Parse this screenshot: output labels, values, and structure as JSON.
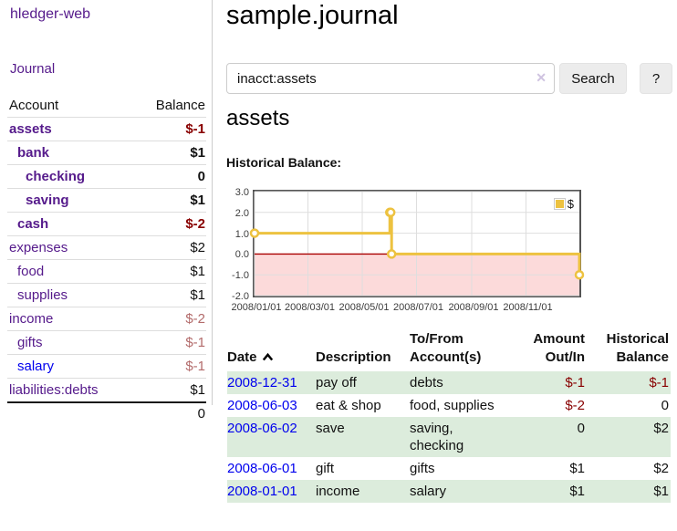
{
  "app": {
    "title": "hledger-web"
  },
  "colors": {
    "link_visited_purple": "#551a8b",
    "link_blue": "#0000ee",
    "negative_red": "#880000",
    "negative_dim_red": "#b36b6b",
    "series_gold": "#edc240",
    "row_green": "#dcecdc",
    "chart_negative_bg": "#fcdada",
    "zero_line_red": "#aa0000",
    "chart_border": "#545454"
  },
  "sidebar": {
    "journal_link": "Journal",
    "accounts_table": {
      "headers": {
        "account": "Account",
        "balance": "Balance"
      },
      "rows": [
        {
          "name": "assets",
          "level": 1,
          "matched": true,
          "balance": "$-1",
          "balance_style": "neg"
        },
        {
          "name": "bank",
          "level": 2,
          "matched": true,
          "balance": "$1",
          "balance_style": "plain"
        },
        {
          "name": "checking",
          "level": 3,
          "matched": true,
          "balance": "0",
          "balance_style": "plain"
        },
        {
          "name": "saving",
          "level": 3,
          "matched": true,
          "balance": "$1",
          "balance_style": "plain"
        },
        {
          "name": "cash",
          "level": 2,
          "matched": true,
          "balance": "$-2",
          "balance_style": "neg"
        },
        {
          "name": "expenses",
          "level": 1,
          "matched": false,
          "balance": "$2",
          "balance_style": "plain"
        },
        {
          "name": "food",
          "level": 2,
          "matched": false,
          "balance": "$1",
          "balance_style": "plain"
        },
        {
          "name": "supplies",
          "level": 2,
          "matched": false,
          "balance": "$1",
          "balance_style": "plain"
        },
        {
          "name": "income",
          "level": 1,
          "matched": false,
          "balance": "$-2",
          "balance_style": "neg-dim"
        },
        {
          "name": "gifts",
          "level": 2,
          "matched": false,
          "balance": "$-1",
          "balance_style": "neg-dim"
        },
        {
          "name": "salary",
          "level": 2,
          "matched": false,
          "balance": "$-1",
          "balance_style": "neg-dim",
          "link_style": "blue"
        },
        {
          "name": "liabilities:debts",
          "level": 1,
          "matched": false,
          "balance": "$1",
          "balance_style": "plain"
        }
      ],
      "total": "0"
    }
  },
  "main": {
    "title": "sample.journal",
    "search": {
      "value": "inacct:assets",
      "clear_icon": "✕",
      "search_label": "Search",
      "help_label": "?"
    },
    "account_heading": "assets",
    "chart_label": "Historical Balance:"
  },
  "chart_data": {
    "type": "line",
    "subtype": "step",
    "title": "Historical Balance:",
    "legend": "$",
    "legend_position": "top-right",
    "grid": true,
    "negative_region_shaded": true,
    "xlim": [
      "2008-01-01",
      "2008-12-31"
    ],
    "ylim": [
      -2,
      3
    ],
    "x_ticks": [
      "2008/01/01",
      "2008/03/01",
      "2008/05/01",
      "2008/07/01",
      "2008/09/01",
      "2008/11/01"
    ],
    "y_ticks": [
      "3.0",
      "2.0",
      "1.0",
      "0.0",
      "-1.0",
      "-2.0"
    ],
    "series": [
      {
        "name": "$",
        "color": "#edc240",
        "points": [
          [
            "2008-01-01",
            1
          ],
          [
            "2008-06-01",
            2
          ],
          [
            "2008-06-02",
            2
          ],
          [
            "2008-06-03",
            0
          ],
          [
            "2008-12-31",
            -1
          ]
        ]
      }
    ]
  },
  "register_table": {
    "headers": {
      "date": "Date",
      "description": "Description",
      "accounts": "To/From Account(s)",
      "amount": "Amount Out/In",
      "balance": "Historical Balance"
    },
    "rows": [
      {
        "date": "2008-12-31",
        "description": "pay off",
        "accounts": "debts",
        "amount": "$-1",
        "amount_style": "neg",
        "balance": "$-1",
        "balance_style": "neg"
      },
      {
        "date": "2008-06-03",
        "description": "eat & shop",
        "accounts": "food, supplies",
        "amount": "$-2",
        "amount_style": "neg",
        "balance": "0",
        "balance_style": "plain"
      },
      {
        "date": "2008-06-02",
        "description": "save",
        "accounts": "saving, checking",
        "amount": "0",
        "amount_style": "plain",
        "balance": "$2",
        "balance_style": "plain"
      },
      {
        "date": "2008-06-01",
        "description": "gift",
        "accounts": "gifts",
        "amount": "$1",
        "amount_style": "plain",
        "balance": "$2",
        "balance_style": "plain"
      },
      {
        "date": "2008-01-01",
        "description": "income",
        "accounts": "salary",
        "amount": "$1",
        "amount_style": "plain",
        "balance": "$1",
        "balance_style": "plain"
      }
    ]
  }
}
